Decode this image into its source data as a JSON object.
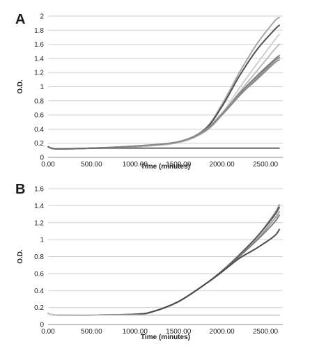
{
  "chart_data": [
    {
      "panel_label": "A",
      "type": "line",
      "xlabel": "Time (minutes)",
      "ylabel": "O.D.",
      "xlim": [
        0,
        2700
      ],
      "ylim": [
        0,
        2
      ],
      "x_ticks": [
        0,
        500,
        1000,
        1500,
        2000,
        2500
      ],
      "x_tick_labels": [
        "0.00",
        "500.00",
        "1000.00",
        "1500.00",
        "2000.00",
        "2500.00"
      ],
      "y_ticks": [
        0,
        0.2,
        0.4,
        0.6,
        0.8,
        1,
        1.2,
        1.4,
        1.6,
        1.8,
        2
      ],
      "y_tick_labels": [
        "0",
        "0.2",
        "0.4",
        "0.6",
        "0.8",
        "1",
        "1.2",
        "1.4",
        "1.6",
        "1.8",
        "2"
      ],
      "grid": true,
      "series": [
        {
          "color": "#a8a8a8",
          "x": [
            0,
            100,
            500,
            1000,
            1500,
            1800,
            2000,
            2200,
            2400,
            2600,
            2660
          ],
          "y": [
            0.15,
            0.12,
            0.13,
            0.15,
            0.22,
            0.4,
            0.75,
            1.2,
            1.6,
            1.92,
            1.98
          ]
        },
        {
          "color": "#505050",
          "x": [
            0,
            100,
            500,
            1000,
            1500,
            1800,
            2000,
            2200,
            2400,
            2600,
            2660
          ],
          "y": [
            0.15,
            0.12,
            0.13,
            0.15,
            0.22,
            0.39,
            0.72,
            1.15,
            1.52,
            1.8,
            1.87
          ]
        },
        {
          "color": "#d0d0d0",
          "x": [
            0,
            100,
            500,
            1000,
            1500,
            1800,
            2000,
            2200,
            2400,
            2600,
            2660
          ],
          "y": [
            0.15,
            0.12,
            0.13,
            0.15,
            0.21,
            0.37,
            0.62,
            0.98,
            1.32,
            1.65,
            1.74
          ]
        },
        {
          "color": "#bdbdbd",
          "x": [
            0,
            100,
            500,
            1000,
            1500,
            1800,
            2000,
            2200,
            2400,
            2600,
            2660
          ],
          "y": [
            0.15,
            0.12,
            0.13,
            0.15,
            0.21,
            0.36,
            0.6,
            0.92,
            1.22,
            1.52,
            1.6
          ]
        },
        {
          "color": "#7a7a7a",
          "x": [
            0,
            100,
            500,
            1000,
            1500,
            1800,
            2000,
            2200,
            2400,
            2600,
            2660
          ],
          "y": [
            0.15,
            0.12,
            0.13,
            0.16,
            0.22,
            0.38,
            0.62,
            0.9,
            1.15,
            1.38,
            1.44
          ]
        },
        {
          "color": "#959595",
          "x": [
            0,
            100,
            500,
            1000,
            1500,
            1800,
            2000,
            2200,
            2400,
            2600,
            2660
          ],
          "y": [
            0.15,
            0.12,
            0.13,
            0.16,
            0.22,
            0.38,
            0.62,
            0.88,
            1.1,
            1.33,
            1.38
          ]
        },
        {
          "color": "#8a8a8a",
          "x": [
            0,
            100,
            500,
            1000,
            1500,
            1800,
            2000,
            2200,
            2400,
            2600,
            2660
          ],
          "y": [
            0.15,
            0.12,
            0.13,
            0.16,
            0.22,
            0.37,
            0.6,
            0.87,
            1.12,
            1.36,
            1.41
          ]
        },
        {
          "color": "#6a6a6a",
          "x": [
            0,
            100,
            500,
            1000,
            1500,
            2000,
            2500,
            2660
          ],
          "y": [
            0.15,
            0.12,
            0.13,
            0.13,
            0.13,
            0.13,
            0.13,
            0.13
          ]
        }
      ]
    },
    {
      "panel_label": "B",
      "type": "line",
      "xlabel": "Time (minutes)",
      "ylabel": "O.D.",
      "xlim": [
        0,
        2700
      ],
      "ylim": [
        0,
        1.6
      ],
      "x_ticks": [
        0,
        500,
        1000,
        1500,
        2000,
        2500
      ],
      "x_tick_labels": [
        "0.00",
        "500.00",
        "1000.00",
        "1500.00",
        "2000.00",
        "2500.00"
      ],
      "y_ticks": [
        0,
        0.2,
        0.4,
        0.6,
        0.8,
        1,
        1.2,
        1.4,
        1.6
      ],
      "y_tick_labels": [
        "0",
        "0.2",
        "0.4",
        "0.6",
        "0.8",
        "1",
        "1.2",
        "1.4",
        "1.6"
      ],
      "grid": true,
      "series": [
        {
          "color": "#909090",
          "x": [
            0,
            100,
            500,
            1000,
            1200,
            1500,
            1800,
            2000,
            2200,
            2400,
            2600,
            2660
          ],
          "y": [
            0.13,
            0.11,
            0.11,
            0.12,
            0.15,
            0.27,
            0.47,
            0.63,
            0.82,
            1.03,
            1.3,
            1.41
          ]
        },
        {
          "color": "#555555",
          "x": [
            0,
            100,
            500,
            1000,
            1200,
            1500,
            1800,
            2000,
            2200,
            2400,
            2600,
            2660
          ],
          "y": [
            0.13,
            0.11,
            0.11,
            0.12,
            0.15,
            0.27,
            0.47,
            0.63,
            0.82,
            1.03,
            1.28,
            1.38
          ]
        },
        {
          "color": "#a0a0a0",
          "x": [
            0,
            100,
            500,
            1000,
            1200,
            1500,
            1800,
            2000,
            2200,
            2400,
            2600,
            2660
          ],
          "y": [
            0.13,
            0.11,
            0.11,
            0.12,
            0.15,
            0.27,
            0.47,
            0.62,
            0.8,
            1.0,
            1.24,
            1.33
          ]
        },
        {
          "color": "#7f7f7f",
          "x": [
            0,
            100,
            500,
            1000,
            1200,
            1500,
            1800,
            2000,
            2200,
            2400,
            2600,
            2660
          ],
          "y": [
            0.13,
            0.11,
            0.11,
            0.12,
            0.15,
            0.27,
            0.47,
            0.62,
            0.8,
            0.99,
            1.2,
            1.29
          ]
        },
        {
          "color": "#4a4a4a",
          "x": [
            0,
            100,
            500,
            1000,
            1200,
            1500,
            1800,
            2000,
            2200,
            2400,
            2600,
            2660
          ],
          "y": [
            0.13,
            0.11,
            0.11,
            0.12,
            0.15,
            0.27,
            0.47,
            0.62,
            0.78,
            0.9,
            1.04,
            1.12
          ]
        },
        {
          "color": "#cfcfcf",
          "x": [
            0,
            100,
            500,
            1000,
            1500,
            2000,
            2500,
            2660
          ],
          "y": [
            0.13,
            0.11,
            0.11,
            0.11,
            0.11,
            0.11,
            0.11,
            0.11
          ]
        }
      ]
    }
  ]
}
